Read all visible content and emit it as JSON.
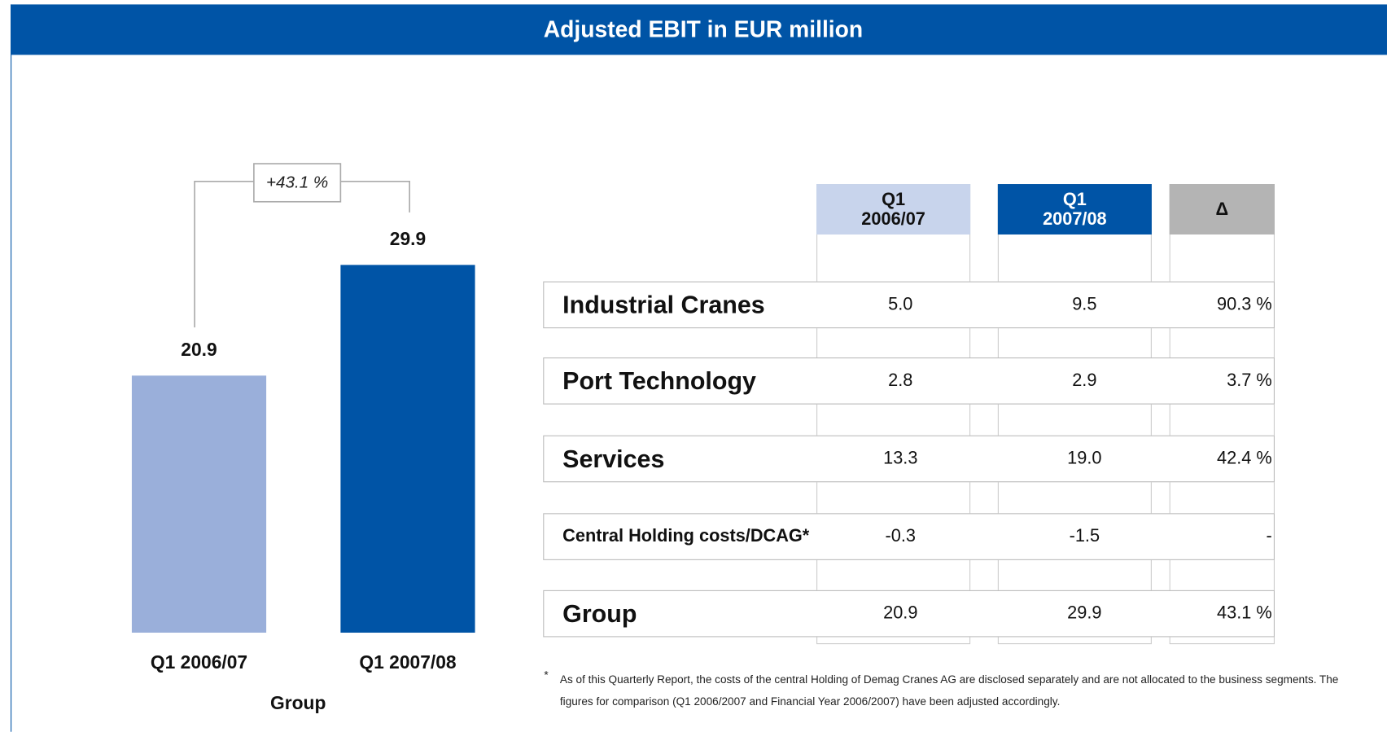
{
  "title": "Adjusted EBIT in EUR million",
  "chart_data": {
    "type": "bar",
    "categories": [
      "Q1 2006/07",
      "Q1 2007/08"
    ],
    "values": [
      20.9,
      29.9
    ],
    "colors": [
      "#9aafda",
      "#0054a6"
    ],
    "xlabel": "Group",
    "annotation": "+43.1 %"
  },
  "table": {
    "headers": [
      "Q1\n2006/07",
      "Q1\n2007/08",
      "Δ"
    ],
    "header_colors": [
      "#c8d4ec",
      "#0054a6",
      "#b4b4b4"
    ],
    "rows": [
      {
        "label": "Industrial Cranes",
        "values": [
          "5.0",
          "9.5",
          "90.3 %"
        ]
      },
      {
        "label": "Port Technology",
        "values": [
          "2.8",
          "2.9",
          "3.7 %"
        ]
      },
      {
        "label": "Services",
        "values": [
          "13.3",
          "19.0",
          "42.4 %"
        ]
      },
      {
        "label": "Central Holding costs/DCAG*",
        "values": [
          "-0.3",
          "-1.5",
          "-"
        ]
      },
      {
        "label": "Group",
        "values": [
          "20.9",
          "29.9",
          "43.1 %"
        ]
      }
    ]
  },
  "footnote": {
    "marker": "*",
    "text": "As of this Quarterly Report, the costs of the central Holding of Demag Cranes AG are disclosed separately and are not allocated to the business segments. The figures for comparison (Q1 2006/2007 and Financial Year 2006/2007) have been adjusted accordingly."
  }
}
